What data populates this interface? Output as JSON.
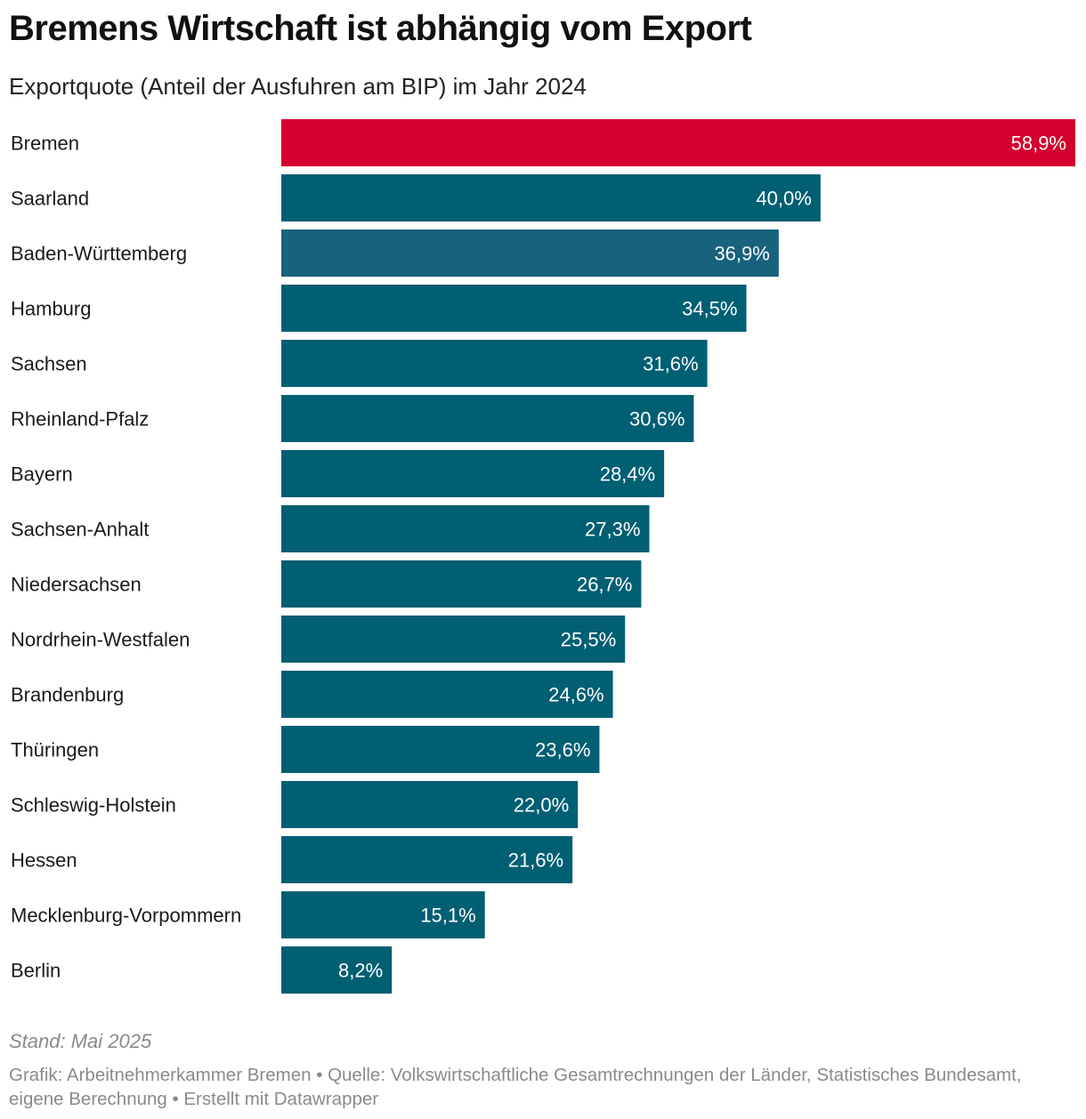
{
  "title": "Bremens Wirtschaft ist abhängig vom Export",
  "subtitle": "Exportquote (Anteil der Ausfuhren am BIP) im Jahr 2024",
  "chart_data": {
    "type": "bar",
    "orientation": "horizontal",
    "title": "Bremens Wirtschaft ist abhängig vom Export",
    "subtitle": "Exportquote (Anteil der Ausfuhren am BIP) im Jahr 2024",
    "xlabel": "",
    "ylabel": "",
    "xlim": [
      0,
      58.9
    ],
    "unit": "%",
    "categories": [
      "Bremen",
      "Saarland",
      "Baden-Württemberg",
      "Hamburg",
      "Sachsen",
      "Rheinland-Pfalz",
      "Bayern",
      "Sachsen-Anhalt",
      "Niedersachsen",
      "Nordrhein-Westfalen",
      "Brandenburg",
      "Thüringen",
      "Schleswig-Holstein",
      "Hessen",
      "Mecklenburg-Vorpommern",
      "Berlin"
    ],
    "values": [
      58.9,
      40.0,
      36.9,
      34.5,
      31.6,
      30.6,
      28.4,
      27.3,
      26.7,
      25.5,
      24.6,
      23.6,
      22.0,
      21.6,
      15.1,
      8.2
    ],
    "value_labels": [
      "58,9%",
      "40,0%",
      "36,9%",
      "34,5%",
      "31,6%",
      "30,6%",
      "28,4%",
      "27,3%",
      "26,7%",
      "25,5%",
      "24,6%",
      "23,6%",
      "22,0%",
      "21,6%",
      "15,1%",
      "8,2%"
    ],
    "highlight": "Bremen",
    "colors": {
      "default": "#005f73",
      "highlight": "#d4002d",
      "hover": "#17627c",
      "label_text": "#ffffff",
      "category_text": "#1a1a1a"
    },
    "hover_index": 2,
    "gridlines": false
  },
  "footer": {
    "note": "Stand: Mai 2025",
    "credit": "Grafik: Arbeitnehmerkammer Bremen • Quelle: Volkswirtschaftliche Gesamtrechnungen der Länder, Statistisches Bundesamt, eigene Berechnung • Erstellt mit Datawrapper"
  }
}
